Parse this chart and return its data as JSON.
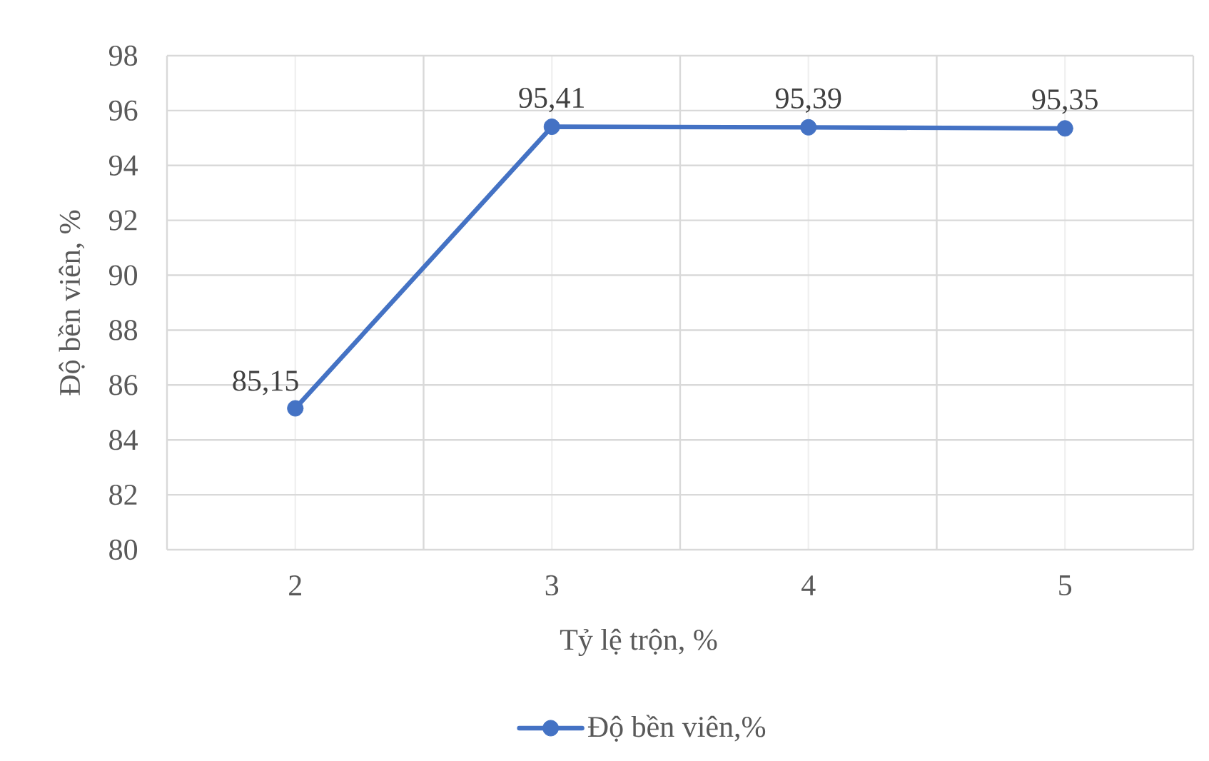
{
  "chart_data": {
    "type": "line",
    "xlabel": "Tỷ lệ trộn, %",
    "ylabel": "Độ bền viên, %",
    "categories": [
      "2",
      "3",
      "4",
      "5"
    ],
    "series": [
      {
        "name": "Độ bền viên,%",
        "color": "#4472c4",
        "values": [
          85.15,
          95.41,
          95.39,
          95.35
        ],
        "value_labels": [
          "85,15",
          "95,41",
          "95,39",
          "95,35"
        ]
      }
    ],
    "ylim": [
      80,
      98
    ],
    "yticks": [
      80,
      82,
      84,
      86,
      88,
      90,
      92,
      94,
      96,
      98
    ],
    "grid": true,
    "legend": "bottom",
    "marker": "circle",
    "line_style": "solid"
  }
}
